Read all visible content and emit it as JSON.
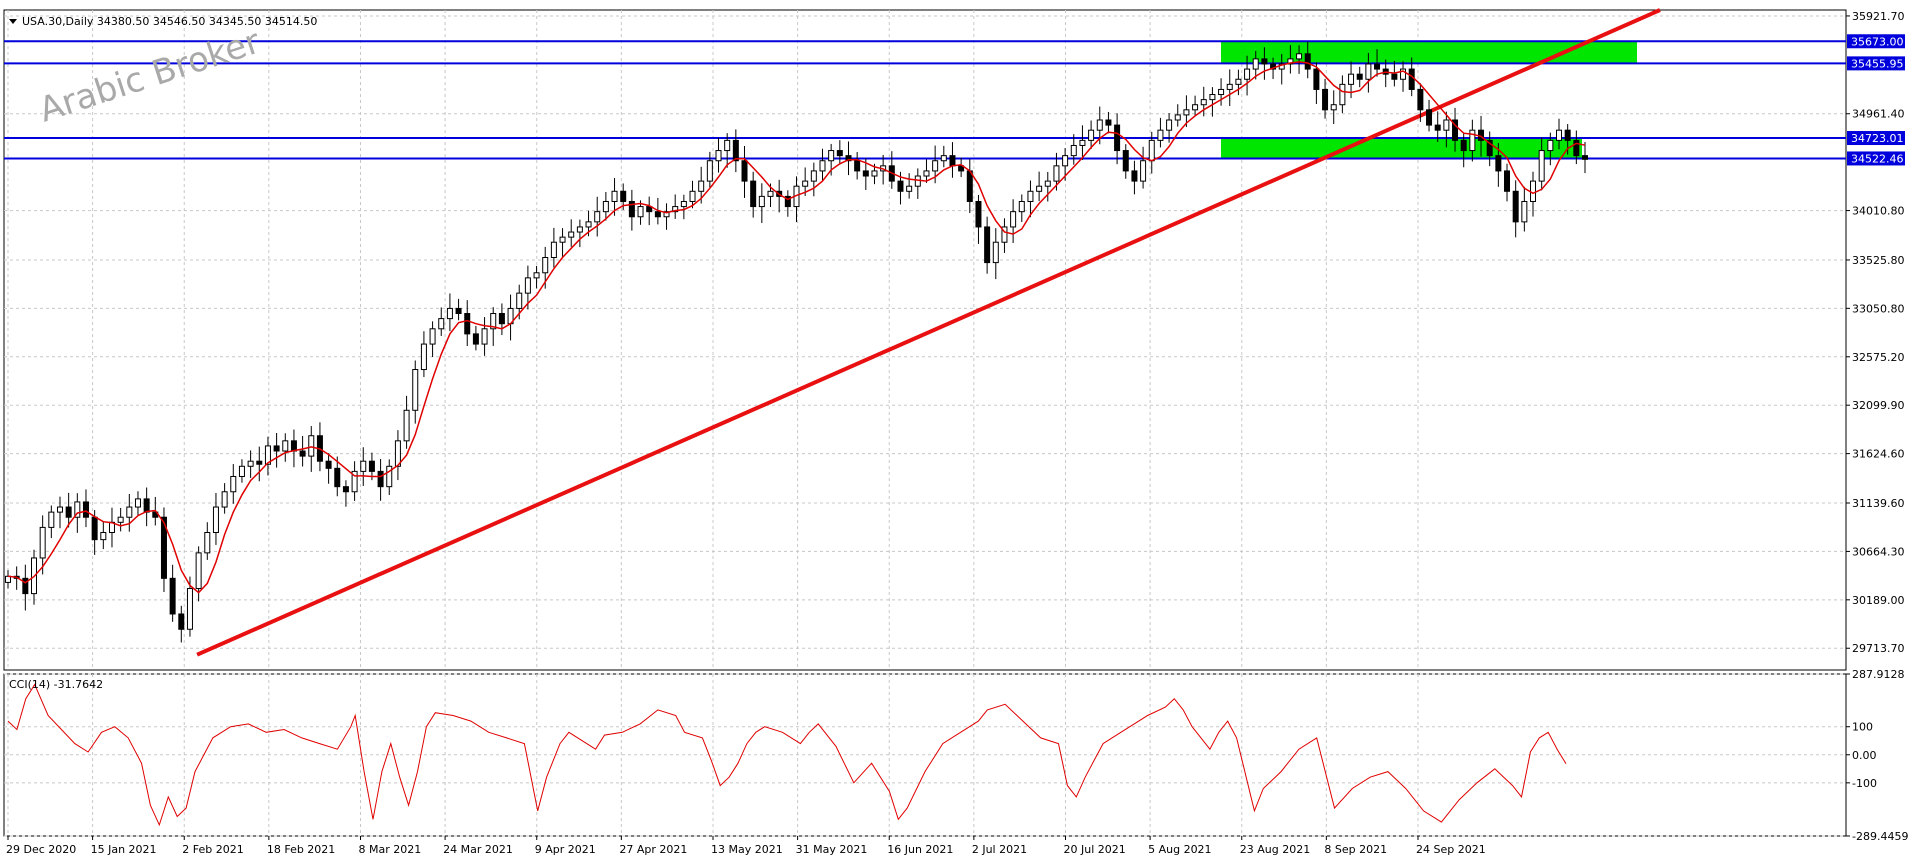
{
  "header": {
    "symbol_line": "USA.30,Daily  34380.50 34546.50 34345.50 34514.50"
  },
  "watermark": "Arabic Broker",
  "colors": {
    "candle": "#000000",
    "ma": "#e00000",
    "trendline": "#e81010",
    "level": "#0000dd",
    "zone": "#00e600",
    "cci": "#e00000",
    "grid": "#c8c8c8"
  },
  "chart_data": [
    {
      "type": "candlestick",
      "name": "price",
      "symbol": "USA.30",
      "timeframe": "Daily",
      "ohlc_current": {
        "open": 34380.5,
        "high": 34546.5,
        "low": 34345.5,
        "close": 34514.5
      },
      "ylim": [
        29500,
        35980
      ],
      "y_ticks": [
        "35921.70",
        "34961.40",
        "34010.80",
        "33525.80",
        "33050.80",
        "32575.20",
        "32099.90",
        "31624.60",
        "31139.60",
        "30664.30",
        "30189.00",
        "29713.70"
      ],
      "y_tick_values": [
        35921.7,
        34961.4,
        34010.8,
        33525.8,
        33050.8,
        32575.2,
        32099.9,
        31624.6,
        31139.6,
        30664.3,
        30189.0,
        29713.7
      ],
      "x_labels": [
        "29 Dec 2020",
        "15 Jan 2021",
        "2 Feb 2021",
        "18 Feb 2021",
        "8 Mar 2021",
        "24 Mar 2021",
        "9 Apr 2021",
        "27 Apr 2021",
        "13 May 2021",
        "31 May 2021",
        "16 Jun 2021",
        "2 Jul 2021",
        "20 Jul 2021",
        "5 Aug 2021",
        "23 Aug 2021",
        "8 Sep 2021",
        "24 Sep 2021"
      ],
      "x_label_index": [
        0,
        12,
        25,
        37,
        50,
        62,
        75,
        87,
        100,
        112,
        125,
        137,
        150,
        162,
        175,
        187,
        200
      ],
      "closes": [
        30420,
        30400,
        30250,
        30600,
        30900,
        31050,
        31100,
        31000,
        31150,
        31000,
        30780,
        30850,
        30950,
        31000,
        31100,
        31180,
        31050,
        31000,
        30400,
        30050,
        29900,
        30300,
        30650,
        30850,
        31100,
        31250,
        31400,
        31500,
        31550,
        31520,
        31700,
        31650,
        31750,
        31650,
        31600,
        31800,
        31550,
        31480,
        31300,
        31250,
        31450,
        31550,
        31450,
        31300,
        31500,
        31750,
        32050,
        32450,
        32700,
        32850,
        32950,
        33050,
        33000,
        32800,
        32700,
        32850,
        33000,
        32900,
        33050,
        33200,
        33350,
        33400,
        33550,
        33700,
        33750,
        33800,
        33850,
        33900,
        34000,
        34100,
        34200,
        34100,
        33950,
        34050,
        34000,
        33950,
        34000,
        34050,
        34100,
        34200,
        34300,
        34500,
        34600,
        34700,
        34500,
        34300,
        34050,
        34150,
        34200,
        34150,
        34050,
        34250,
        34300,
        34400,
        34500,
        34600,
        34550,
        34500,
        34400,
        34350,
        34400,
        34450,
        34300,
        34200,
        34250,
        34350,
        34400,
        34500,
        34550,
        34450,
        34400,
        34100,
        33850,
        33500,
        33700,
        33850,
        34000,
        34100,
        34200,
        34250,
        34300,
        34450,
        34550,
        34650,
        34700,
        34800,
        34900,
        34850,
        34600,
        34400,
        34300,
        34500,
        34700,
        34800,
        34900,
        34950,
        35000,
        35050,
        35100,
        35150,
        35200,
        35250,
        35300,
        35400,
        35500,
        35450,
        35400,
        35450,
        35500,
        35550,
        35400,
        35200,
        35000,
        35050,
        35250,
        35350,
        35300,
        35450,
        35400,
        35350,
        35300,
        35400,
        35200,
        35000,
        34850,
        34800,
        34900,
        34700,
        34600,
        34800,
        34700,
        34550,
        34400,
        34200,
        33900,
        34100,
        34300,
        34600,
        34700,
        34800,
        34700,
        34550,
        34514
      ],
      "ma_period_label": "MA",
      "levels": [
        {
          "label": "35673.00",
          "value": 35673.0
        },
        {
          "label": "35455.95",
          "value": 35455.95
        },
        {
          "label": "34723.01",
          "value": 34723.01
        },
        {
          "label": "34522.46",
          "value": 34522.46
        }
      ],
      "zones": [
        {
          "from": 35455.95,
          "to": 35673.0
        },
        {
          "from": 34522.46,
          "to": 34723.01
        }
      ],
      "trendline": {
        "start": {
          "index": 22,
          "value": 29650
        },
        "end": {
          "index": 206,
          "value": 35980
        }
      }
    },
    {
      "type": "line",
      "name": "CCI(14)",
      "label": "CCI(14) -31.7642",
      "ylim": [
        -289.4459,
        287.9128
      ],
      "y_ticks": [
        "287.9128",
        "100",
        "0.00",
        "-100",
        "-289.4459"
      ],
      "y_tick_values": [
        287.9128,
        100,
        0,
        -100,
        -289.4459
      ],
      "values": [
        120,
        80,
        50,
        250,
        180,
        130,
        100,
        60,
        20,
        80,
        100,
        60,
        -40,
        -180,
        -250,
        -120,
        -200,
        -150,
        -180,
        -60,
        20,
        60,
        100,
        110,
        90,
        80,
        100,
        60,
        40,
        20,
        30,
        -180,
        -60,
        50,
        90,
        60,
        40,
        20,
        100,
        120,
        160,
        200,
        120,
        140,
        180,
        120,
        80,
        60,
        -240,
        -80,
        40,
        120,
        140,
        160,
        180,
        160,
        140,
        100,
        80,
        60,
        40,
        20,
        -180,
        -60,
        40,
        60,
        100,
        90,
        80,
        60,
        100,
        120,
        80,
        60,
        20,
        40,
        80,
        120,
        100,
        140,
        180,
        240,
        200,
        160,
        120,
        80,
        20,
        0,
        -40,
        -100,
        -60,
        -20,
        40,
        80,
        120,
        200,
        260,
        280,
        200,
        120,
        -80,
        -120,
        -80,
        -40,
        20,
        60,
        80,
        60,
        40,
        80,
        60,
        20,
        -40,
        -100,
        -200,
        -260,
        -220,
        -120,
        -40,
        20,
        60,
        80,
        100,
        120,
        140,
        160,
        140,
        120,
        80,
        60,
        -180,
        -100,
        -40,
        40,
        80,
        120,
        160,
        140,
        100,
        60,
        40,
        60,
        80,
        120,
        160,
        200,
        180,
        140,
        100,
        -20,
        -80,
        -120,
        -40,
        40,
        80,
        100,
        60,
        40,
        60,
        80,
        120,
        -260,
        -120,
        -40,
        20,
        60,
        -220,
        -100,
        -60,
        -40,
        -20,
        -80,
        -200,
        -240,
        -180,
        -100,
        -60,
        -40,
        -80,
        -120,
        -160,
        20,
        60,
        80,
        -20,
        -31.76
      ],
      "points_cci": [
        [
          0,
          120
        ],
        [
          2,
          90
        ],
        [
          4,
          200
        ],
        [
          6,
          250
        ],
        [
          9,
          140
        ],
        [
          12,
          90
        ],
        [
          15,
          40
        ],
        [
          18,
          10
        ],
        [
          21,
          80
        ],
        [
          24,
          100
        ],
        [
          27,
          60
        ],
        [
          30,
          -30
        ],
        [
          32,
          -180
        ],
        [
          34,
          -250
        ],
        [
          36,
          -150
        ],
        [
          38,
          -220
        ],
        [
          40,
          -190
        ],
        [
          42,
          -60
        ],
        [
          46,
          60
        ],
        [
          50,
          100
        ],
        [
          54,
          110
        ],
        [
          58,
          80
        ],
        [
          62,
          90
        ],
        [
          66,
          60
        ],
        [
          70,
          40
        ],
        [
          74,
          20
        ],
        [
          77,
          100
        ],
        [
          78,
          140
        ],
        [
          80,
          -60
        ],
        [
          82,
          -230
        ],
        [
          84,
          -60
        ],
        [
          86,
          40
        ],
        [
          88,
          -80
        ],
        [
          90,
          -180
        ],
        [
          92,
          -60
        ],
        [
          94,
          100
        ],
        [
          96,
          150
        ],
        [
          100,
          140
        ],
        [
          104,
          120
        ],
        [
          108,
          80
        ],
        [
          112,
          60
        ],
        [
          116,
          40
        ],
        [
          119,
          -200
        ],
        [
          121,
          -80
        ],
        [
          124,
          40
        ],
        [
          126,
          80
        ],
        [
          128,
          60
        ],
        [
          132,
          20
        ],
        [
          134,
          70
        ],
        [
          138,
          80
        ],
        [
          142,
          110
        ],
        [
          146,
          160
        ],
        [
          150,
          140
        ],
        [
          152,
          80
        ],
        [
          156,
          60
        ],
        [
          158,
          -20
        ],
        [
          160,
          -110
        ],
        [
          162,
          -80
        ],
        [
          164,
          -30
        ],
        [
          166,
          40
        ],
        [
          168,
          80
        ],
        [
          170,
          100
        ],
        [
          174,
          80
        ],
        [
          178,
          40
        ],
        [
          180,
          80
        ],
        [
          182,
          110
        ],
        [
          186,
          30
        ],
        [
          190,
          -100
        ],
        [
          194,
          -30
        ],
        [
          198,
          -130
        ],
        [
          200,
          -230
        ],
        [
          202,
          -190
        ],
        [
          206,
          -60
        ],
        [
          210,
          40
        ],
        [
          214,
          80
        ],
        [
          218,
          120
        ],
        [
          220,
          160
        ],
        [
          224,
          180
        ],
        [
          228,
          120
        ],
        [
          232,
          60
        ],
        [
          236,
          40
        ],
        [
          238,
          -110
        ],
        [
          240,
          -150
        ],
        [
          242,
          -80
        ],
        [
          244,
          -20
        ],
        [
          246,
          40
        ],
        [
          248,
          60
        ],
        [
          252,
          100
        ],
        [
          256,
          140
        ],
        [
          260,
          170
        ],
        [
          262,
          200
        ],
        [
          264,
          160
        ],
        [
          266,
          100
        ],
        [
          268,
          60
        ],
        [
          270,
          20
        ],
        [
          272,
          80
        ],
        [
          274,
          120
        ],
        [
          276,
          60
        ],
        [
          280,
          -200
        ],
        [
          282,
          -120
        ],
        [
          286,
          -60
        ],
        [
          290,
          20
        ],
        [
          294,
          60
        ],
        [
          298,
          -190
        ],
        [
          302,
          -120
        ],
        [
          306,
          -80
        ],
        [
          310,
          -60
        ],
        [
          314,
          -120
        ],
        [
          318,
          -200
        ],
        [
          322,
          -240
        ],
        [
          326,
          -160
        ],
        [
          330,
          -100
        ],
        [
          334,
          -50
        ],
        [
          336,
          -80
        ],
        [
          338,
          -110
        ],
        [
          340,
          -150
        ],
        [
          342,
          10
        ],
        [
          344,
          60
        ],
        [
          346,
          80
        ],
        [
          348,
          20
        ],
        [
          350,
          -31.76
        ]
      ]
    }
  ],
  "time_axis": {
    "first": "29 Dec 2020"
  }
}
